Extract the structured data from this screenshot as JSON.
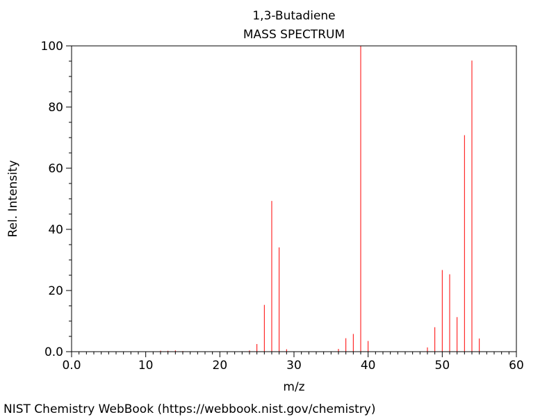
{
  "chart_data": {
    "type": "bar",
    "title": "1,3-Butadiene",
    "subtitle": "MASS SPECTRUM",
    "xlabel": "m/z",
    "ylabel": "Rel. Intensity",
    "xlim": [
      0,
      60
    ],
    "ylim": [
      0,
      100
    ],
    "x_ticks": [
      0,
      10,
      20,
      30,
      40,
      50,
      60
    ],
    "x_tick_labels": [
      "0.0",
      "10",
      "20",
      "30",
      "40",
      "50",
      "60"
    ],
    "y_ticks": [
      0,
      20,
      40,
      60,
      80,
      100
    ],
    "y_tick_labels": [
      "0.0",
      "20",
      "40",
      "60",
      "80",
      "100"
    ],
    "grid": false,
    "legend": "none",
    "bar_color": "#ff0000",
    "peaks": [
      {
        "mz": 12,
        "intensity": 0.3
      },
      {
        "mz": 13,
        "intensity": 0.3
      },
      {
        "mz": 14,
        "intensity": 0.4
      },
      {
        "mz": 15,
        "intensity": 0.2
      },
      {
        "mz": 24,
        "intensity": 0.4
      },
      {
        "mz": 25,
        "intensity": 2.5
      },
      {
        "mz": 26,
        "intensity": 15.3
      },
      {
        "mz": 27,
        "intensity": 49.3
      },
      {
        "mz": 28,
        "intensity": 34.1
      },
      {
        "mz": 29,
        "intensity": 0.8
      },
      {
        "mz": 36,
        "intensity": 0.9
      },
      {
        "mz": 37,
        "intensity": 4.4
      },
      {
        "mz": 38,
        "intensity": 5.8
      },
      {
        "mz": 39,
        "intensity": 100
      },
      {
        "mz": 40,
        "intensity": 3.5
      },
      {
        "mz": 48,
        "intensity": 1.4
      },
      {
        "mz": 49,
        "intensity": 8.0
      },
      {
        "mz": 50,
        "intensity": 26.7
      },
      {
        "mz": 51,
        "intensity": 25.3
      },
      {
        "mz": 52,
        "intensity": 11.3
      },
      {
        "mz": 53,
        "intensity": 70.8
      },
      {
        "mz": 54,
        "intensity": 95.2
      },
      {
        "mz": 55,
        "intensity": 4.3
      }
    ]
  },
  "footer": {
    "credit": "NIST Chemistry WebBook (https://webbook.nist.gov/chemistry)"
  }
}
